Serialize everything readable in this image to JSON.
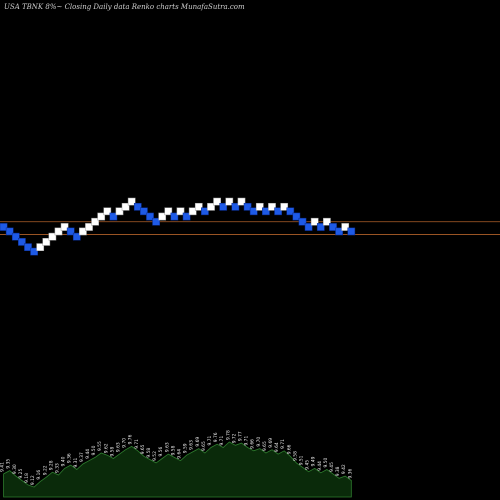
{
  "header": {
    "title": "USA TBNK 8%~ Closing Daily data Renko charts MunafaSutra.com"
  },
  "colors": {
    "background": "#000000",
    "up_brick": "#ffffff",
    "down_brick": "#1e5ae6",
    "brick_border": "#0a2a8a",
    "ref_line": "#b0602a",
    "volume_fill": "#0a2a0a",
    "volume_line": "#2e7d2e"
  },
  "chart_data": {
    "type": "renko",
    "bricks": [
      {
        "dir": "down",
        "level": 9.43
      },
      {
        "dir": "down",
        "level": 9.37
      },
      {
        "dir": "down",
        "level": 9.3
      },
      {
        "dir": "down",
        "level": 9.23
      },
      {
        "dir": "down",
        "level": 9.16
      },
      {
        "dir": "down",
        "level": 9.1
      },
      {
        "dir": "up",
        "level": 9.16
      },
      {
        "dir": "up",
        "level": 9.23
      },
      {
        "dir": "up",
        "level": 9.3
      },
      {
        "dir": "up",
        "level": 9.37
      },
      {
        "dir": "up",
        "level": 9.43
      },
      {
        "dir": "down",
        "level": 9.37
      },
      {
        "dir": "down",
        "level": 9.3
      },
      {
        "dir": "up",
        "level": 9.37
      },
      {
        "dir": "up",
        "level": 9.43
      },
      {
        "dir": "up",
        "level": 9.5
      },
      {
        "dir": "up",
        "level": 9.57
      },
      {
        "dir": "up",
        "level": 9.64
      },
      {
        "dir": "down",
        "level": 9.57
      },
      {
        "dir": "up",
        "level": 9.64
      },
      {
        "dir": "up",
        "level": 9.7
      },
      {
        "dir": "up",
        "level": 9.77
      },
      {
        "dir": "down",
        "level": 9.7
      },
      {
        "dir": "down",
        "level": 9.64
      },
      {
        "dir": "down",
        "level": 9.57
      },
      {
        "dir": "down",
        "level": 9.5
      },
      {
        "dir": "up",
        "level": 9.57
      },
      {
        "dir": "up",
        "level": 9.64
      },
      {
        "dir": "down",
        "level": 9.57
      },
      {
        "dir": "up",
        "level": 9.64
      },
      {
        "dir": "down",
        "level": 9.57
      },
      {
        "dir": "up",
        "level": 9.64
      },
      {
        "dir": "up",
        "level": 9.7
      },
      {
        "dir": "down",
        "level": 9.64
      },
      {
        "dir": "up",
        "level": 9.7
      },
      {
        "dir": "up",
        "level": 9.77
      },
      {
        "dir": "down",
        "level": 9.7
      },
      {
        "dir": "up",
        "level": 9.77
      },
      {
        "dir": "down",
        "level": 9.7
      },
      {
        "dir": "up",
        "level": 9.77
      },
      {
        "dir": "down",
        "level": 9.7
      },
      {
        "dir": "down",
        "level": 9.64
      },
      {
        "dir": "up",
        "level": 9.7
      },
      {
        "dir": "down",
        "level": 9.64
      },
      {
        "dir": "up",
        "level": 9.7
      },
      {
        "dir": "down",
        "level": 9.64
      },
      {
        "dir": "up",
        "level": 9.7
      },
      {
        "dir": "down",
        "level": 9.64
      },
      {
        "dir": "down",
        "level": 9.57
      },
      {
        "dir": "down",
        "level": 9.5
      },
      {
        "dir": "down",
        "level": 9.43
      },
      {
        "dir": "up",
        "level": 9.5
      },
      {
        "dir": "down",
        "level": 9.43
      },
      {
        "dir": "up",
        "level": 9.5
      },
      {
        "dir": "down",
        "level": 9.43
      },
      {
        "dir": "down",
        "level": 9.37
      },
      {
        "dir": "up",
        "level": 9.43
      },
      {
        "dir": "down",
        "level": 9.37
      }
    ],
    "reference_levels": [
      9.5,
      9.33
    ],
    "ylim": [
      9.1,
      9.77
    ],
    "volume_labels": [
      "9.41",
      "9.35",
      "9.30",
      "9.25",
      "9.18",
      "9.12",
      "9.16",
      "9.22",
      "9.28",
      "9.33",
      "9.40",
      "9.36",
      "9.31",
      "9.37",
      "9.44",
      "9.50",
      "9.55",
      "9.62",
      "9.58",
      "9.63",
      "9.70",
      "9.76",
      "9.71",
      "9.65",
      "9.58",
      "9.52",
      "9.56",
      "9.63",
      "9.58",
      "9.64",
      "9.59",
      "9.63",
      "9.69",
      "9.65",
      "9.71",
      "9.76",
      "9.71",
      "9.78",
      "9.72",
      "9.77",
      "9.71",
      "9.66",
      "9.70",
      "9.65",
      "9.69",
      "9.64",
      "9.71",
      "9.66",
      "9.58",
      "9.51",
      "9.45",
      "9.49",
      "9.44",
      "9.50",
      "9.45",
      "9.38",
      "9.42",
      "9.36"
    ],
    "volume_relative": [
      0.42,
      0.48,
      0.38,
      0.3,
      0.22,
      0.18,
      0.28,
      0.36,
      0.45,
      0.4,
      0.52,
      0.58,
      0.5,
      0.6,
      0.66,
      0.72,
      0.8,
      0.76,
      0.7,
      0.78,
      0.86,
      0.92,
      0.84,
      0.74,
      0.68,
      0.62,
      0.7,
      0.78,
      0.72,
      0.66,
      0.76,
      0.82,
      0.88,
      0.8,
      0.9,
      0.96,
      0.9,
      1.0,
      0.94,
      0.98,
      0.9,
      0.84,
      0.88,
      0.8,
      0.86,
      0.78,
      0.84,
      0.74,
      0.62,
      0.54,
      0.46,
      0.52,
      0.44,
      0.5,
      0.42,
      0.34,
      0.38,
      0.3
    ]
  }
}
